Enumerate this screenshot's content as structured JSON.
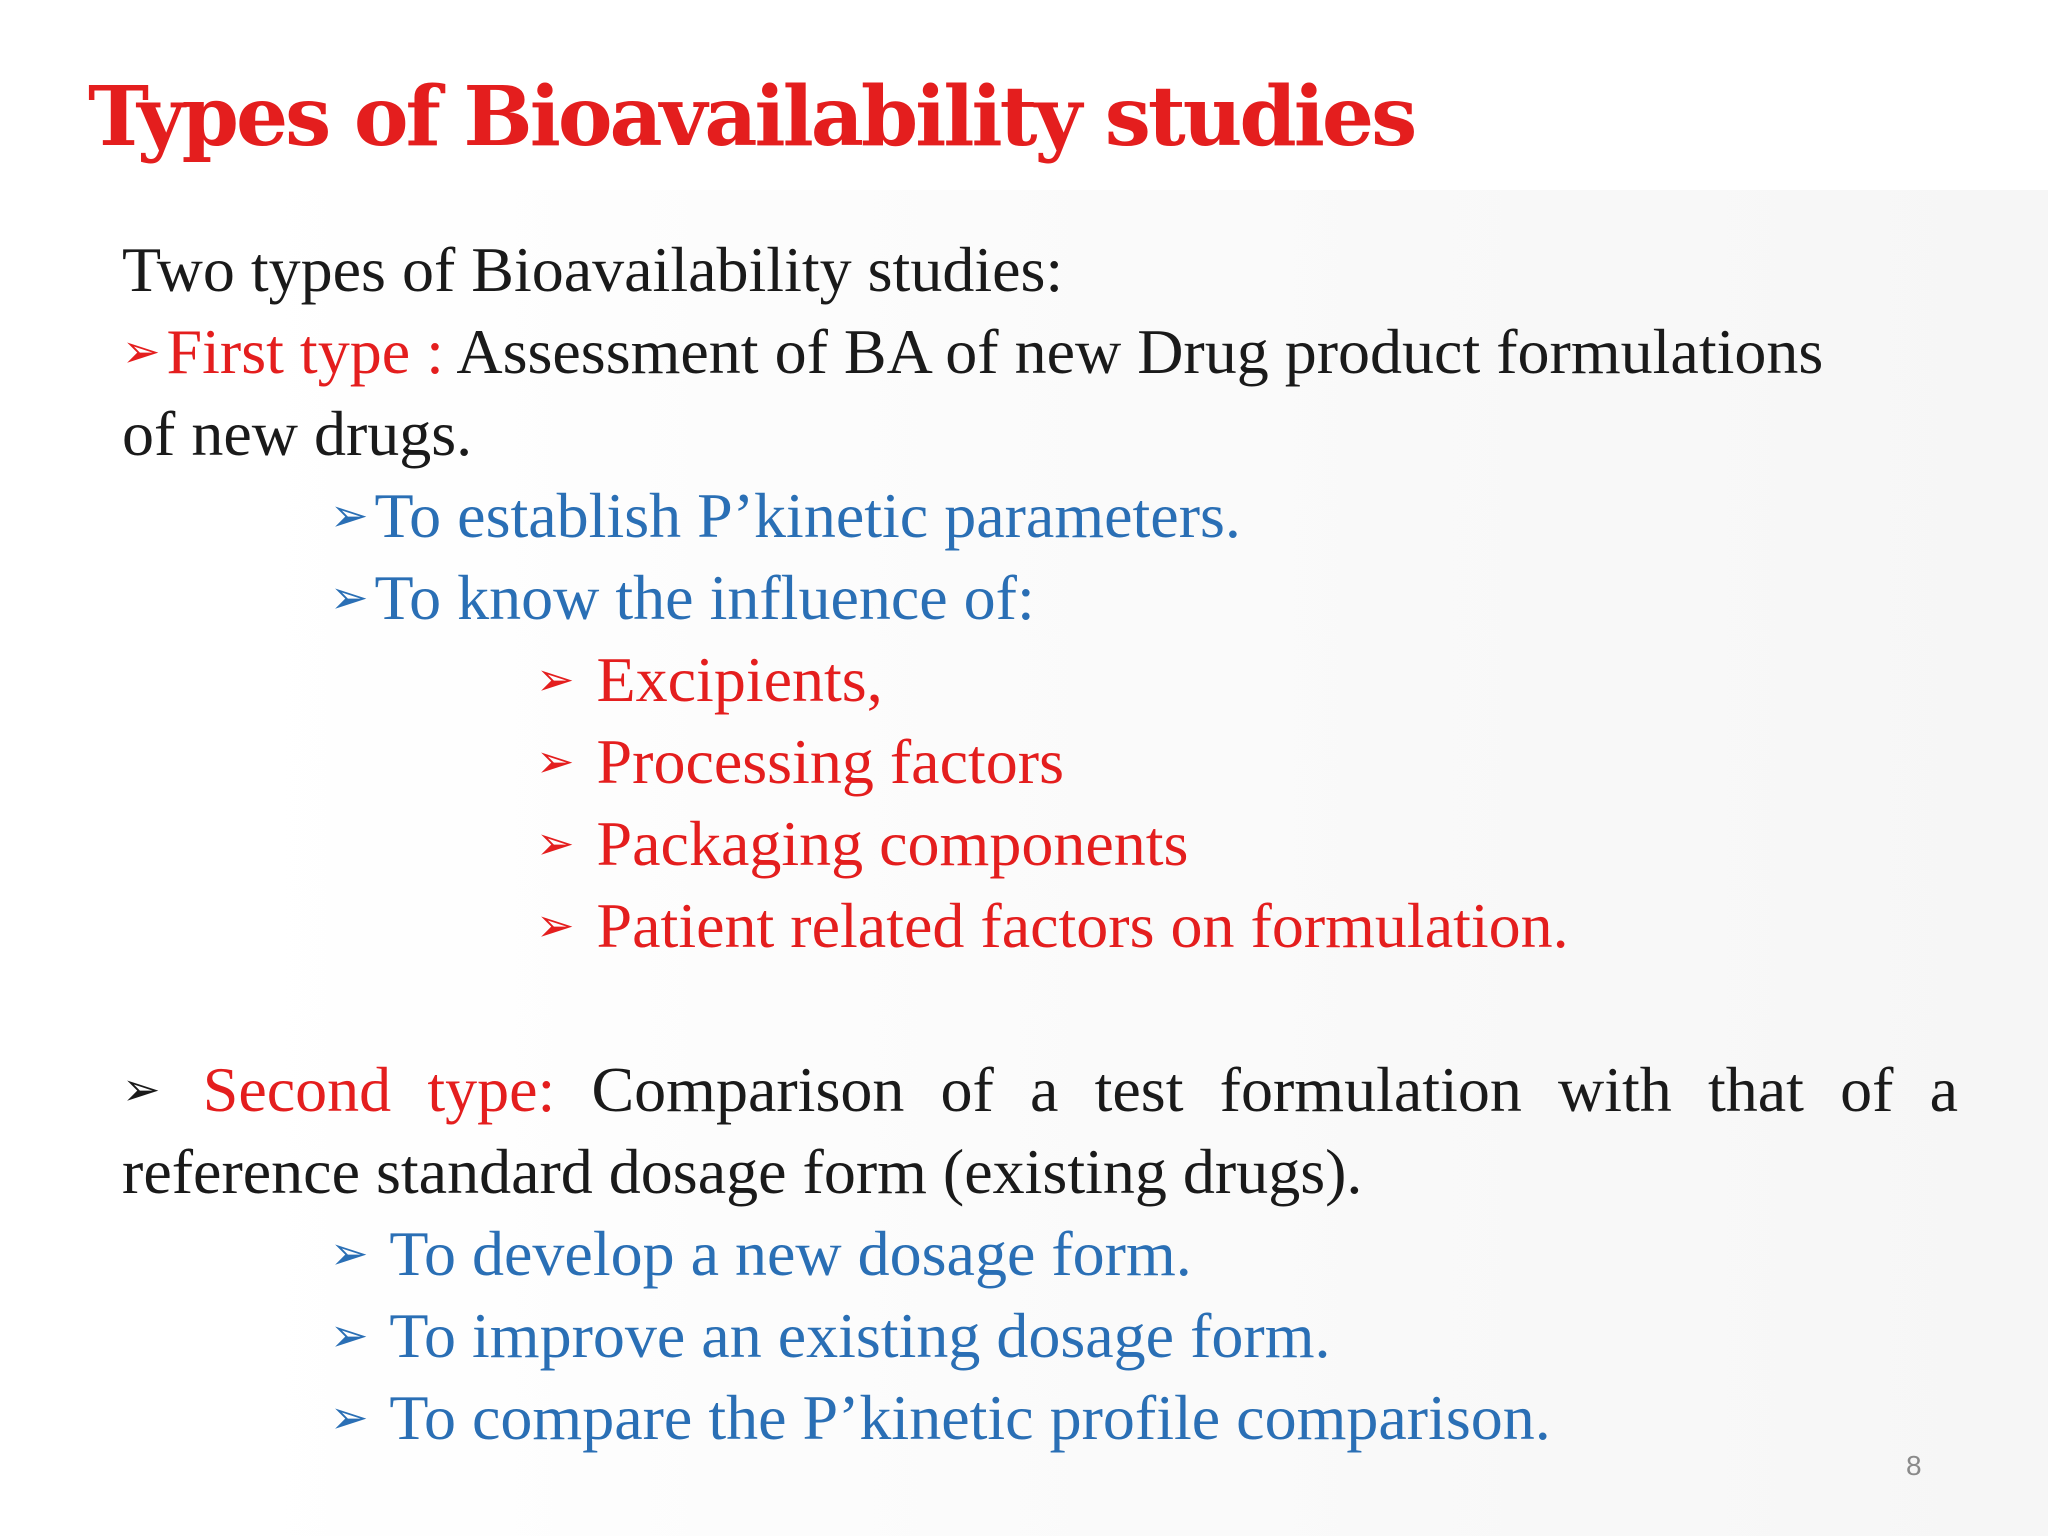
{
  "slide": {
    "title": "Types of Bioavailability studies",
    "intro": "Two types of Bioavailability studies:",
    "first": {
      "bullet": "➢",
      "label": "First type :",
      "text": "Assessment of BA of new Drug product formulations",
      "text_cont": "of new drugs.",
      "subitems": [
        "To establish P’kinetic parameters.",
        "To know the influence of:"
      ],
      "factors": [
        "Excipients,",
        "Processing factors",
        "Packaging components",
        "Patient related factors on formulation."
      ]
    },
    "second": {
      "bullet": "➢",
      "label": "Second type:",
      "text": "Comparison of a test formulation with that of a",
      "text_cont": "reference standard dosage form (existing drugs).",
      "subitems": [
        "To develop a new dosage form.",
        "To improve an existing dosage form.",
        "To compare the P’kinetic profile comparison."
      ]
    },
    "page_number": "8",
    "colors": {
      "title": "#e41e1e",
      "black": "#1a1a1a",
      "red": "#e41e1e",
      "blue": "#2a6fb5"
    }
  }
}
